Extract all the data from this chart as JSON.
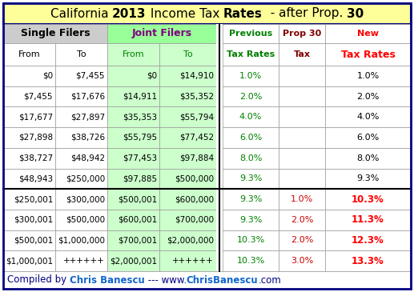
{
  "title_bg": "#ffff99",
  "title_parts": [
    "California ",
    "2013",
    " Income Tax ",
    "Rates",
    "  - after Prop. ",
    "30"
  ],
  "title_bold": [
    false,
    true,
    false,
    true,
    false,
    true
  ],
  "title_fontsize": 11,
  "header1_sf_bg": "#cccccc",
  "header1_jf_bg": "#99ff99",
  "header1_sf_color": "#000000",
  "header1_jf_color": "#800080",
  "header1_fontsize": 9,
  "header2_from_to_color": "#000000",
  "header2_jf_color": "#008000",
  "header2_prev_color": "#008000",
  "header2_prop_color": "#800000",
  "header2_new_color": "#ff0000",
  "header2_new_bold": true,
  "joint_col_bg": "#ccffcc",
  "sep_line_color": "#000000",
  "grid_color": "#999999",
  "outer_border_color": "#000080",
  "outer_border_lw": 2,
  "rows": [
    [
      "$0",
      "$7,455",
      "$0",
      "$14,910",
      "1.0%",
      "",
      "1.0%"
    ],
    [
      "$7,455",
      "$17,676",
      "$14,911",
      "$35,352",
      "2.0%",
      "",
      "2.0%"
    ],
    [
      "$17,677",
      "$27,897",
      "$35,353",
      "$55,794",
      "4.0%",
      "",
      "4.0%"
    ],
    [
      "$27,898",
      "$38,726",
      "$55,795",
      "$77,452",
      "6.0%",
      "",
      "6.0%"
    ],
    [
      "$38,727",
      "$48,942",
      "$77,453",
      "$97,884",
      "8.0%",
      "",
      "8.0%"
    ],
    [
      "$48,943",
      "$250,000",
      "$97,885",
      "$500,000",
      "9.3%",
      "",
      "9.3%"
    ],
    [
      "$250,001",
      "$300,000",
      "$500,001",
      "$600,000",
      "9.3%",
      "1.0%",
      "10.3%"
    ],
    [
      "$300,001",
      "$500,000",
      "$600,001",
      "$700,000",
      "9.3%",
      "2.0%",
      "11.3%"
    ],
    [
      "$500,001",
      "$1,000,000",
      "$700,001",
      "$2,000,000",
      "10.3%",
      "2.0%",
      "12.3%"
    ],
    [
      "$1,000,001",
      "++++++",
      "$2,000,001",
      "++++++",
      "10.3%",
      "3.0%",
      "13.3%"
    ]
  ],
  "row_prev_color": "#008000",
  "row_prop_color": "#cc0000",
  "row_new_color_normal": "#000000",
  "row_new_color_highlight": "#ff0000",
  "separator_after_row": 5,
  "footer_parts": [
    {
      "text": "Compiled by ",
      "color": "#000080",
      "bold": false
    },
    {
      "text": "Chris Banescu",
      "color": "#1166cc",
      "bold": true
    },
    {
      "text": " --- www.",
      "color": "#000080",
      "bold": false
    },
    {
      "text": "ChrisBanescu",
      "color": "#1166cc",
      "bold": true
    },
    {
      "text": ".com",
      "color": "#000080",
      "bold": false
    }
  ],
  "footer_fontsize": 8.5
}
